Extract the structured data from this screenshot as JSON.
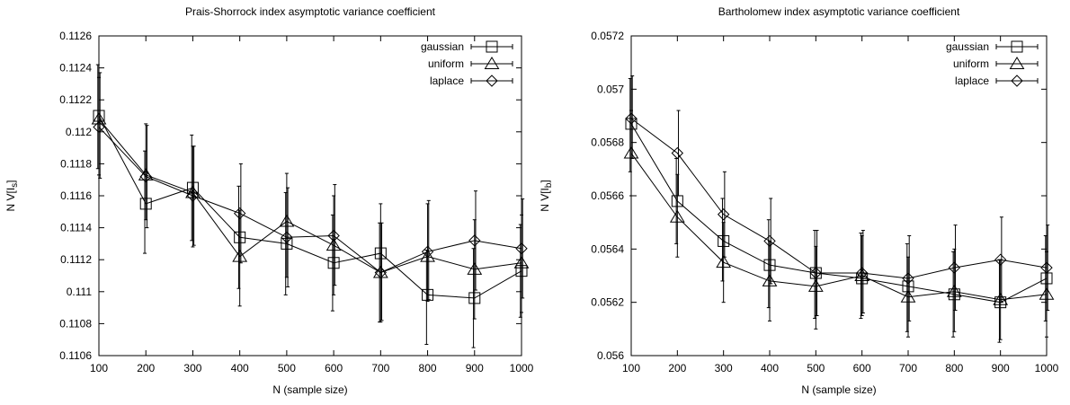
{
  "chart_data": [
    {
      "type": "line",
      "title": "Prais-Shorrock index asymptotic variance coefficient",
      "xlabel": "N (sample size)",
      "ylabel": "N V[I_s]",
      "ylabel_main": "N V[I",
      "ylabel_sub": "s",
      "ylabel_end": "]",
      "x": [
        100,
        200,
        300,
        400,
        500,
        600,
        700,
        800,
        900,
        1000
      ],
      "xlim": [
        100,
        1000
      ],
      "ylim": [
        0.1106,
        0.1126
      ],
      "xticks": [
        "100",
        "200",
        "300",
        "400",
        "500",
        "600",
        "700",
        "800",
        "900",
        "1000"
      ],
      "yticks": [
        "0.1106",
        "0.1108",
        "0.111",
        "0.1112",
        "0.1114",
        "0.1116",
        "0.1118",
        "0.112",
        "0.1122",
        "0.1124",
        "0.1126"
      ],
      "ytick_values": [
        0.1106,
        0.1108,
        0.111,
        0.1112,
        0.1114,
        0.1116,
        0.1118,
        0.112,
        0.1122,
        0.1124,
        0.1126
      ],
      "grid": false,
      "legend_position": "top-right",
      "error_bars": true,
      "series": [
        {
          "name": "gaussian",
          "marker": "square",
          "values": [
            0.1121,
            0.11155,
            0.11165,
            0.11134,
            0.1113,
            0.11118,
            0.11124,
            0.11098,
            0.11096,
            0.11113
          ],
          "err_low": [
            0.11177,
            0.11124,
            0.11132,
            0.11102,
            0.11098,
            0.11088,
            0.11081,
            0.11067,
            0.11065,
            0.11084
          ],
          "err_high": [
            0.11242,
            0.11188,
            0.11198,
            0.11166,
            0.11162,
            0.11148,
            0.11143,
            0.11126,
            0.11127,
            0.11142
          ]
        },
        {
          "name": "uniform",
          "marker": "triangle",
          "values": [
            0.11208,
            0.11173,
            0.11162,
            0.11122,
            0.11144,
            0.11129,
            0.11112,
            0.11122,
            0.11114,
            0.11118
          ],
          "err_low": [
            0.11173,
            0.11145,
            0.11128,
            0.11091,
            0.11109,
            0.11098,
            0.11081,
            0.11094,
            0.11083,
            0.11087
          ],
          "err_high": [
            0.11234,
            0.11205,
            0.11191,
            0.11151,
            0.11174,
            0.1116,
            0.11155,
            0.11155,
            0.11145,
            0.11148
          ]
        },
        {
          "name": "laplace",
          "marker": "diamond",
          "values": [
            0.11203,
            0.11172,
            0.1116,
            0.11149,
            0.11134,
            0.11135,
            0.11112,
            0.11125,
            0.11132,
            0.11127
          ],
          "err_low": [
            0.11171,
            0.1114,
            0.11129,
            0.11118,
            0.11103,
            0.11104,
            0.11082,
            0.11095,
            0.11101,
            0.11096
          ],
          "err_high": [
            0.11237,
            0.11204,
            0.11191,
            0.1118,
            0.11165,
            0.11167,
            0.11143,
            0.11157,
            0.11163,
            0.11158
          ]
        }
      ]
    },
    {
      "type": "line",
      "title": "Bartholomew index asymptotic variance coefficient",
      "xlabel": "N (sample size)",
      "ylabel": "N V[I_b]",
      "ylabel_main": "N V[I",
      "ylabel_sub": "b",
      "ylabel_end": "]",
      "x": [
        100,
        200,
        300,
        400,
        500,
        600,
        700,
        800,
        900,
        1000
      ],
      "xlim": [
        100,
        1000
      ],
      "ylim": [
        0.056,
        0.0572
      ],
      "xticks": [
        "100",
        "200",
        "300",
        "400",
        "500",
        "600",
        "700",
        "800",
        "900",
        "1000"
      ],
      "yticks": [
        "0.056",
        "0.0562",
        "0.0564",
        "0.0566",
        "0.0568",
        "0.057",
        "0.0572"
      ],
      "ytick_values": [
        0.056,
        0.0562,
        0.0564,
        0.0566,
        0.0568,
        0.057,
        0.0572
      ],
      "grid": false,
      "legend_position": "top-right",
      "error_bars": true,
      "series": [
        {
          "name": "gaussian",
          "marker": "square",
          "values": [
            0.05687,
            0.05658,
            0.05643,
            0.05634,
            0.05631,
            0.05629,
            0.05626,
            0.05623,
            0.0562,
            0.05629
          ],
          "err_low": [
            0.05669,
            0.05642,
            0.05628,
            0.05618,
            0.05614,
            0.05614,
            0.05609,
            0.05607,
            0.05605,
            0.05613
          ],
          "err_high": [
            0.05704,
            0.05674,
            0.05659,
            0.05651,
            0.05647,
            0.05646,
            0.05642,
            0.05639,
            0.05636,
            0.05645
          ]
        },
        {
          "name": "uniform",
          "marker": "triangle",
          "values": [
            0.05676,
            0.05652,
            0.05635,
            0.05628,
            0.05626,
            0.0563,
            0.05622,
            0.05624,
            0.05621,
            0.05623
          ],
          "err_low": [
            0.0566,
            0.05637,
            0.0562,
            0.05613,
            0.0561,
            0.05615,
            0.05607,
            0.05609,
            0.05606,
            0.05607
          ],
          "err_high": [
            0.05692,
            0.05668,
            0.0565,
            0.05643,
            0.05641,
            0.05645,
            0.05637,
            0.0564,
            0.05636,
            0.05639
          ]
        },
        {
          "name": "laplace",
          "marker": "diamond",
          "values": [
            0.05689,
            0.05676,
            0.05653,
            0.05643,
            0.05631,
            0.05631,
            0.05629,
            0.05633,
            0.05636,
            0.05633
          ],
          "err_low": [
            0.05674,
            0.0566,
            0.05637,
            0.05627,
            0.05615,
            0.05616,
            0.05613,
            0.05617,
            0.0562,
            0.05617
          ],
          "err_high": [
            0.05705,
            0.05692,
            0.05669,
            0.05659,
            0.05647,
            0.05647,
            0.05645,
            0.05649,
            0.05652,
            0.05649
          ]
        }
      ]
    }
  ]
}
